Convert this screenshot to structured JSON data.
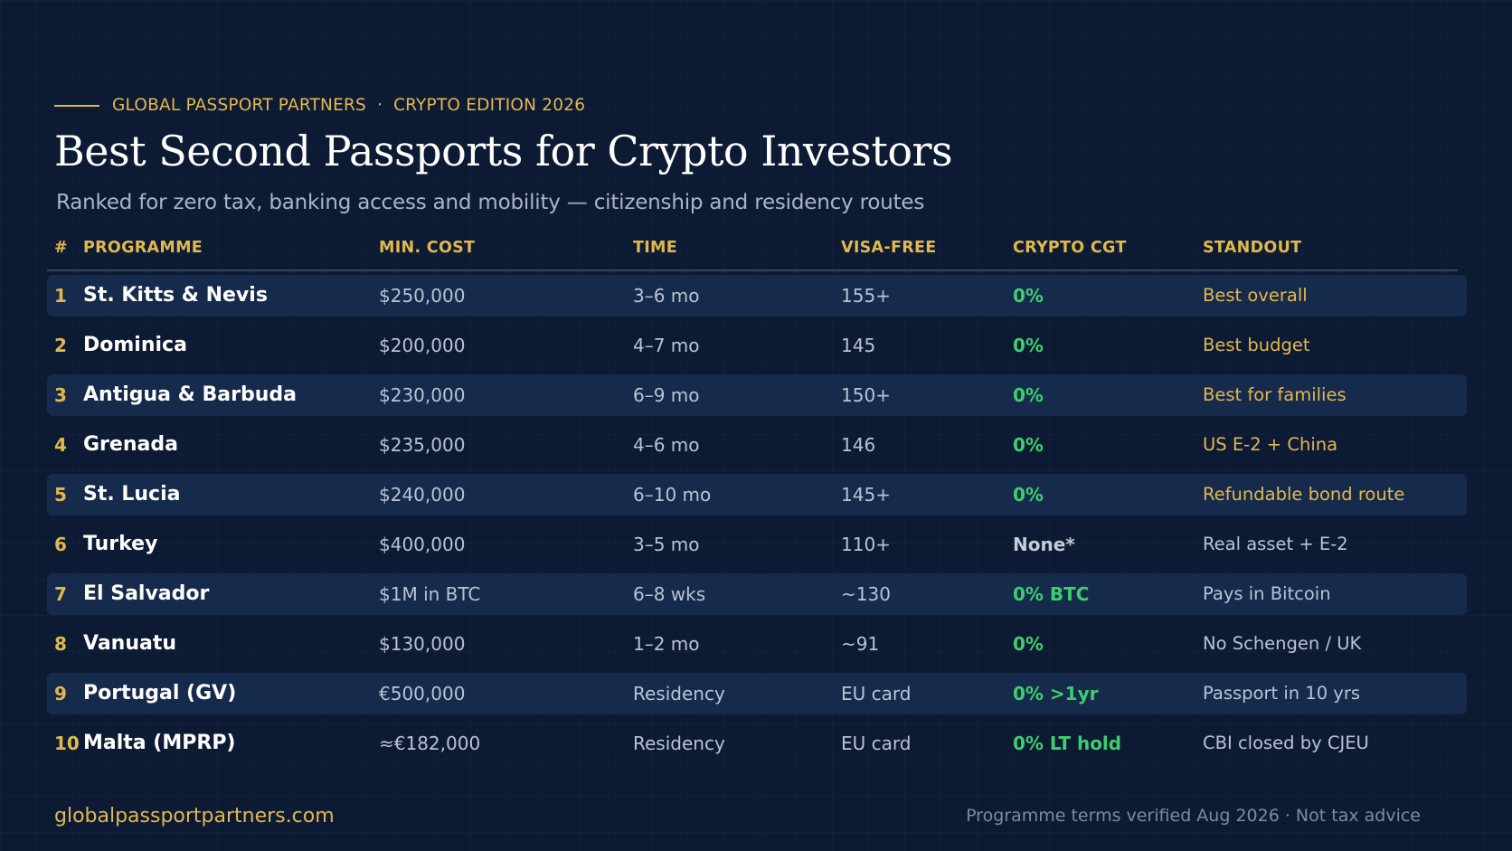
{
  "header": {
    "brand": "GLOBAL PASSPORT PARTNERS",
    "separator": "·",
    "edition": "CRYPTO EDITION 2026",
    "title": "Best Second Passports for Crypto Investors",
    "subtitle": "Ranked for zero tax, banking access and mobility — citizenship and residency routes"
  },
  "table": {
    "headers": {
      "rank": "#",
      "programme": "PROGRAMME",
      "cost": "MIN. COST",
      "time": "TIME",
      "visa": "VISA-FREE",
      "cgt": "CRYPTO CGT",
      "standout": "STANDOUT"
    },
    "rows": [
      {
        "rank": "1",
        "programme": "St. Kitts & Nevis",
        "cost": "$250,000",
        "time": "3–6 mo",
        "visa": "155+",
        "cgt": "0%",
        "cgt_color": "#3ccf6e",
        "standout": "Best overall",
        "standout_color": "#e2b84d"
      },
      {
        "rank": "2",
        "programme": "Dominica",
        "cost": "$200,000",
        "time": "4–7 mo",
        "visa": "145",
        "cgt": "0%",
        "cgt_color": "#3ccf6e",
        "standout": "Best budget",
        "standout_color": "#e2b84d"
      },
      {
        "rank": "3",
        "programme": "Antigua & Barbuda",
        "cost": "$230,000",
        "time": "6–9 mo",
        "visa": "150+",
        "cgt": "0%",
        "cgt_color": "#3ccf6e",
        "standout": "Best for families",
        "standout_color": "#e2b84d"
      },
      {
        "rank": "4",
        "programme": "Grenada",
        "cost": "$235,000",
        "time": "4–6 mo",
        "visa": "146",
        "cgt": "0%",
        "cgt_color": "#3ccf6e",
        "standout": "US E-2 + China",
        "standout_color": "#e2b84d"
      },
      {
        "rank": "5",
        "programme": "St. Lucia",
        "cost": "$240,000",
        "time": "6–10 mo",
        "visa": "145+",
        "cgt": "0%",
        "cgt_color": "#3ccf6e",
        "standout": "Refundable bond route",
        "standout_color": "#e2b84d"
      },
      {
        "rank": "6",
        "programme": "Turkey",
        "cost": "$400,000",
        "time": "3–5 mo",
        "visa": "110+",
        "cgt": "None*",
        "cgt_color": "#c4ccda",
        "standout": "Real asset + E-2",
        "standout_color": "#b9c3d4"
      },
      {
        "rank": "7",
        "programme": "El Salvador",
        "cost": "$1M in BTC",
        "time": "6–8 wks",
        "visa": "~130",
        "cgt": "0% BTC",
        "cgt_color": "#3ccf6e",
        "standout": "Pays in Bitcoin",
        "standout_color": "#b9c3d4"
      },
      {
        "rank": "8",
        "programme": "Vanuatu",
        "cost": "$130,000",
        "time": "1–2 mo",
        "visa": "~91",
        "cgt": "0%",
        "cgt_color": "#3ccf6e",
        "standout": "No Schengen / UK",
        "standout_color": "#b9c3d4"
      },
      {
        "rank": "9",
        "programme": "Portugal (GV)",
        "cost": "€500,000",
        "time": "Residency",
        "visa": "EU card",
        "cgt": "0% >1yr",
        "cgt_color": "#3ccf6e",
        "standout": "Passport in 10 yrs",
        "standout_color": "#b9c3d4"
      },
      {
        "rank": "10",
        "programme": "Malta (MPRP)",
        "cost": "≈€182,000",
        "time": "Residency",
        "visa": "EU card",
        "cgt": "0% LT hold",
        "cgt_color": "#3ccf6e",
        "standout": "CBI closed by CJEU",
        "standout_color": "#b9c3d4"
      }
    ]
  },
  "footer": {
    "website": "globalpassportpartners.com",
    "note": "Programme terms verified Aug 2026 · Not tax advice"
  }
}
